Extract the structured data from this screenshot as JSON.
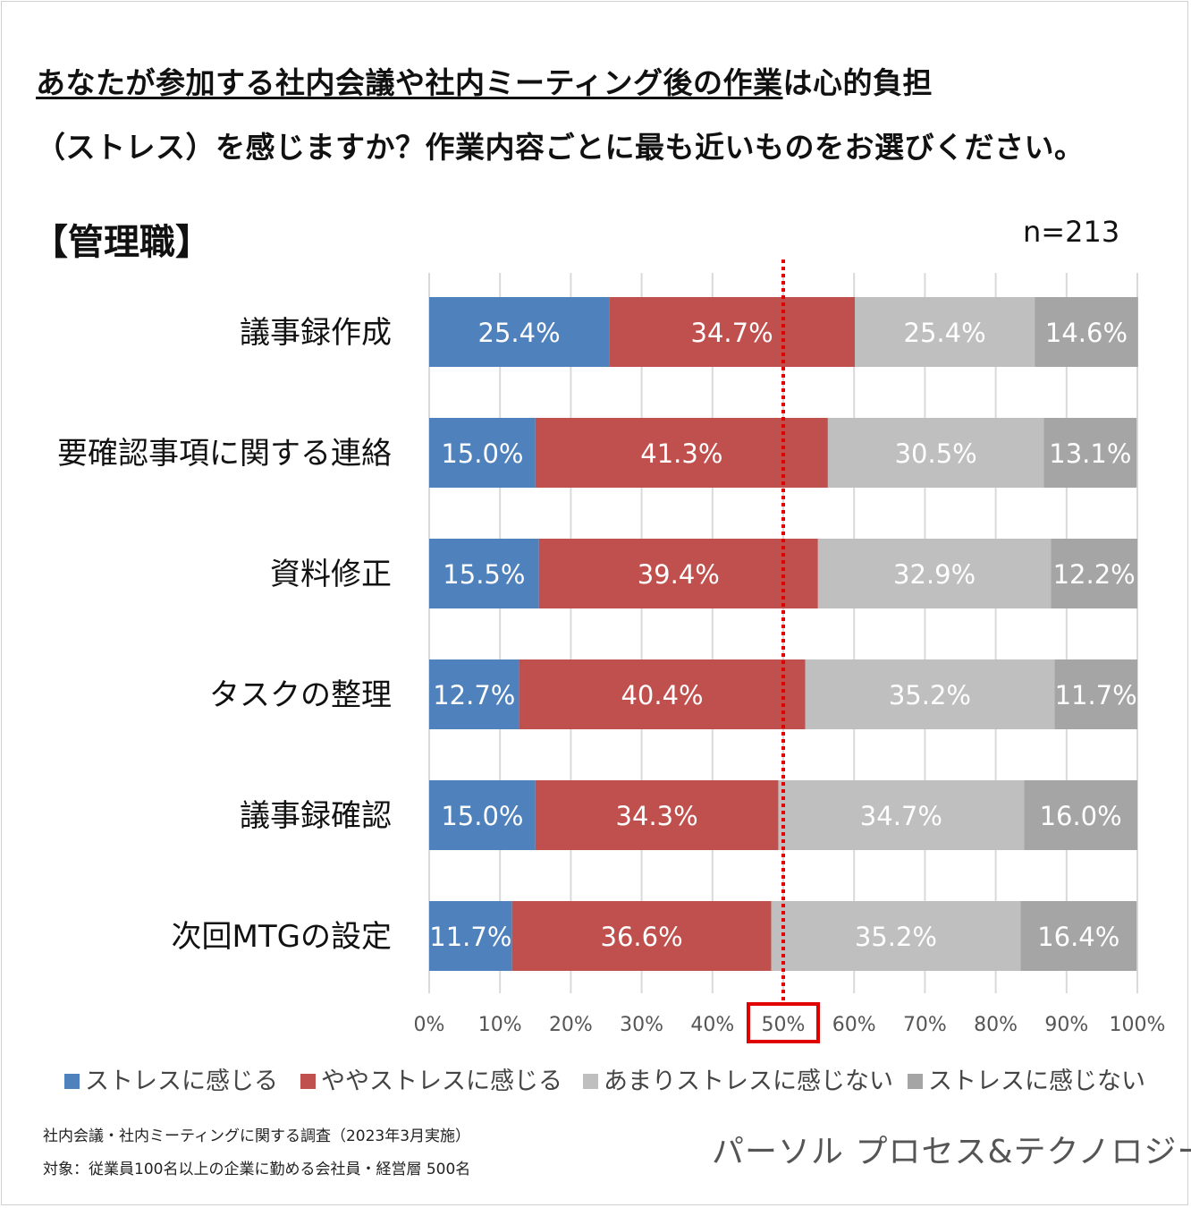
{
  "title_line1_underlined": "あなたが参加する社内会議や社内ミーティング後の作業",
  "title_line1_rest": "は心的負担",
  "title_line2": "（ストレス）を感じますか？作業内容ごとに最も近いものをお選びください。",
  "subgroup": "【管理職】",
  "sample_size": "n=213",
  "chart_data": {
    "type": "bar",
    "orientation": "horizontal",
    "stacked": true,
    "normalized": true,
    "categories": [
      "議事録作成",
      "要確認事項に関する連絡",
      "資料修正",
      "タスクの整理",
      "議事録確認",
      "次回MTGの設定"
    ],
    "series": [
      {
        "name": "ストレスに感じる",
        "color": "#4f81bd",
        "values": [
          25.4,
          15.0,
          15.5,
          12.7,
          15.0,
          11.7
        ]
      },
      {
        "name": "ややストレスに感じる",
        "color": "#c0504d",
        "values": [
          34.7,
          41.3,
          39.4,
          40.4,
          34.3,
          36.6
        ]
      },
      {
        "name": "あまりストレスに感じない",
        "color": "#bfbfbf",
        "values": [
          25.4,
          30.5,
          32.9,
          35.2,
          34.7,
          35.2
        ]
      },
      {
        "name": "ストレスに感じない",
        "color": "#a5a5a5",
        "values": [
          14.6,
          13.1,
          12.2,
          11.7,
          16.0,
          16.4
        ]
      }
    ],
    "data_labels": [
      [
        "25.4%",
        "34.7%",
        "25.4%",
        "14.6%"
      ],
      [
        "15.0%",
        "41.3%",
        "30.5%",
        "13.1%"
      ],
      [
        "15.5%",
        "39.4%",
        "32.9%",
        "12.2%"
      ],
      [
        "12.7%",
        "40.4%",
        "35.2%",
        "11.7%"
      ],
      [
        "15.0%",
        "34.3%",
        "34.7%",
        "16.0%"
      ],
      [
        "11.7%",
        "36.6%",
        "35.2%",
        "16.4%"
      ]
    ],
    "x_ticks": [
      "0%",
      "10%",
      "20%",
      "30%",
      "40%",
      "50%",
      "60%",
      "70%",
      "80%",
      "90%",
      "100%"
    ],
    "xlim": [
      0,
      100
    ],
    "reference_line": {
      "value": 50,
      "label": "50%",
      "color": "#e00000",
      "style": "dotted"
    },
    "legend_position": "bottom"
  },
  "footnotes": [
    "社内会議・社内ミーティングに関する調査（2023年3月実施）",
    "対象：従業員100名以上の企業に勤める会社員・経営層 500名"
  ],
  "company": "パーソル プロセス&テクノロジー"
}
